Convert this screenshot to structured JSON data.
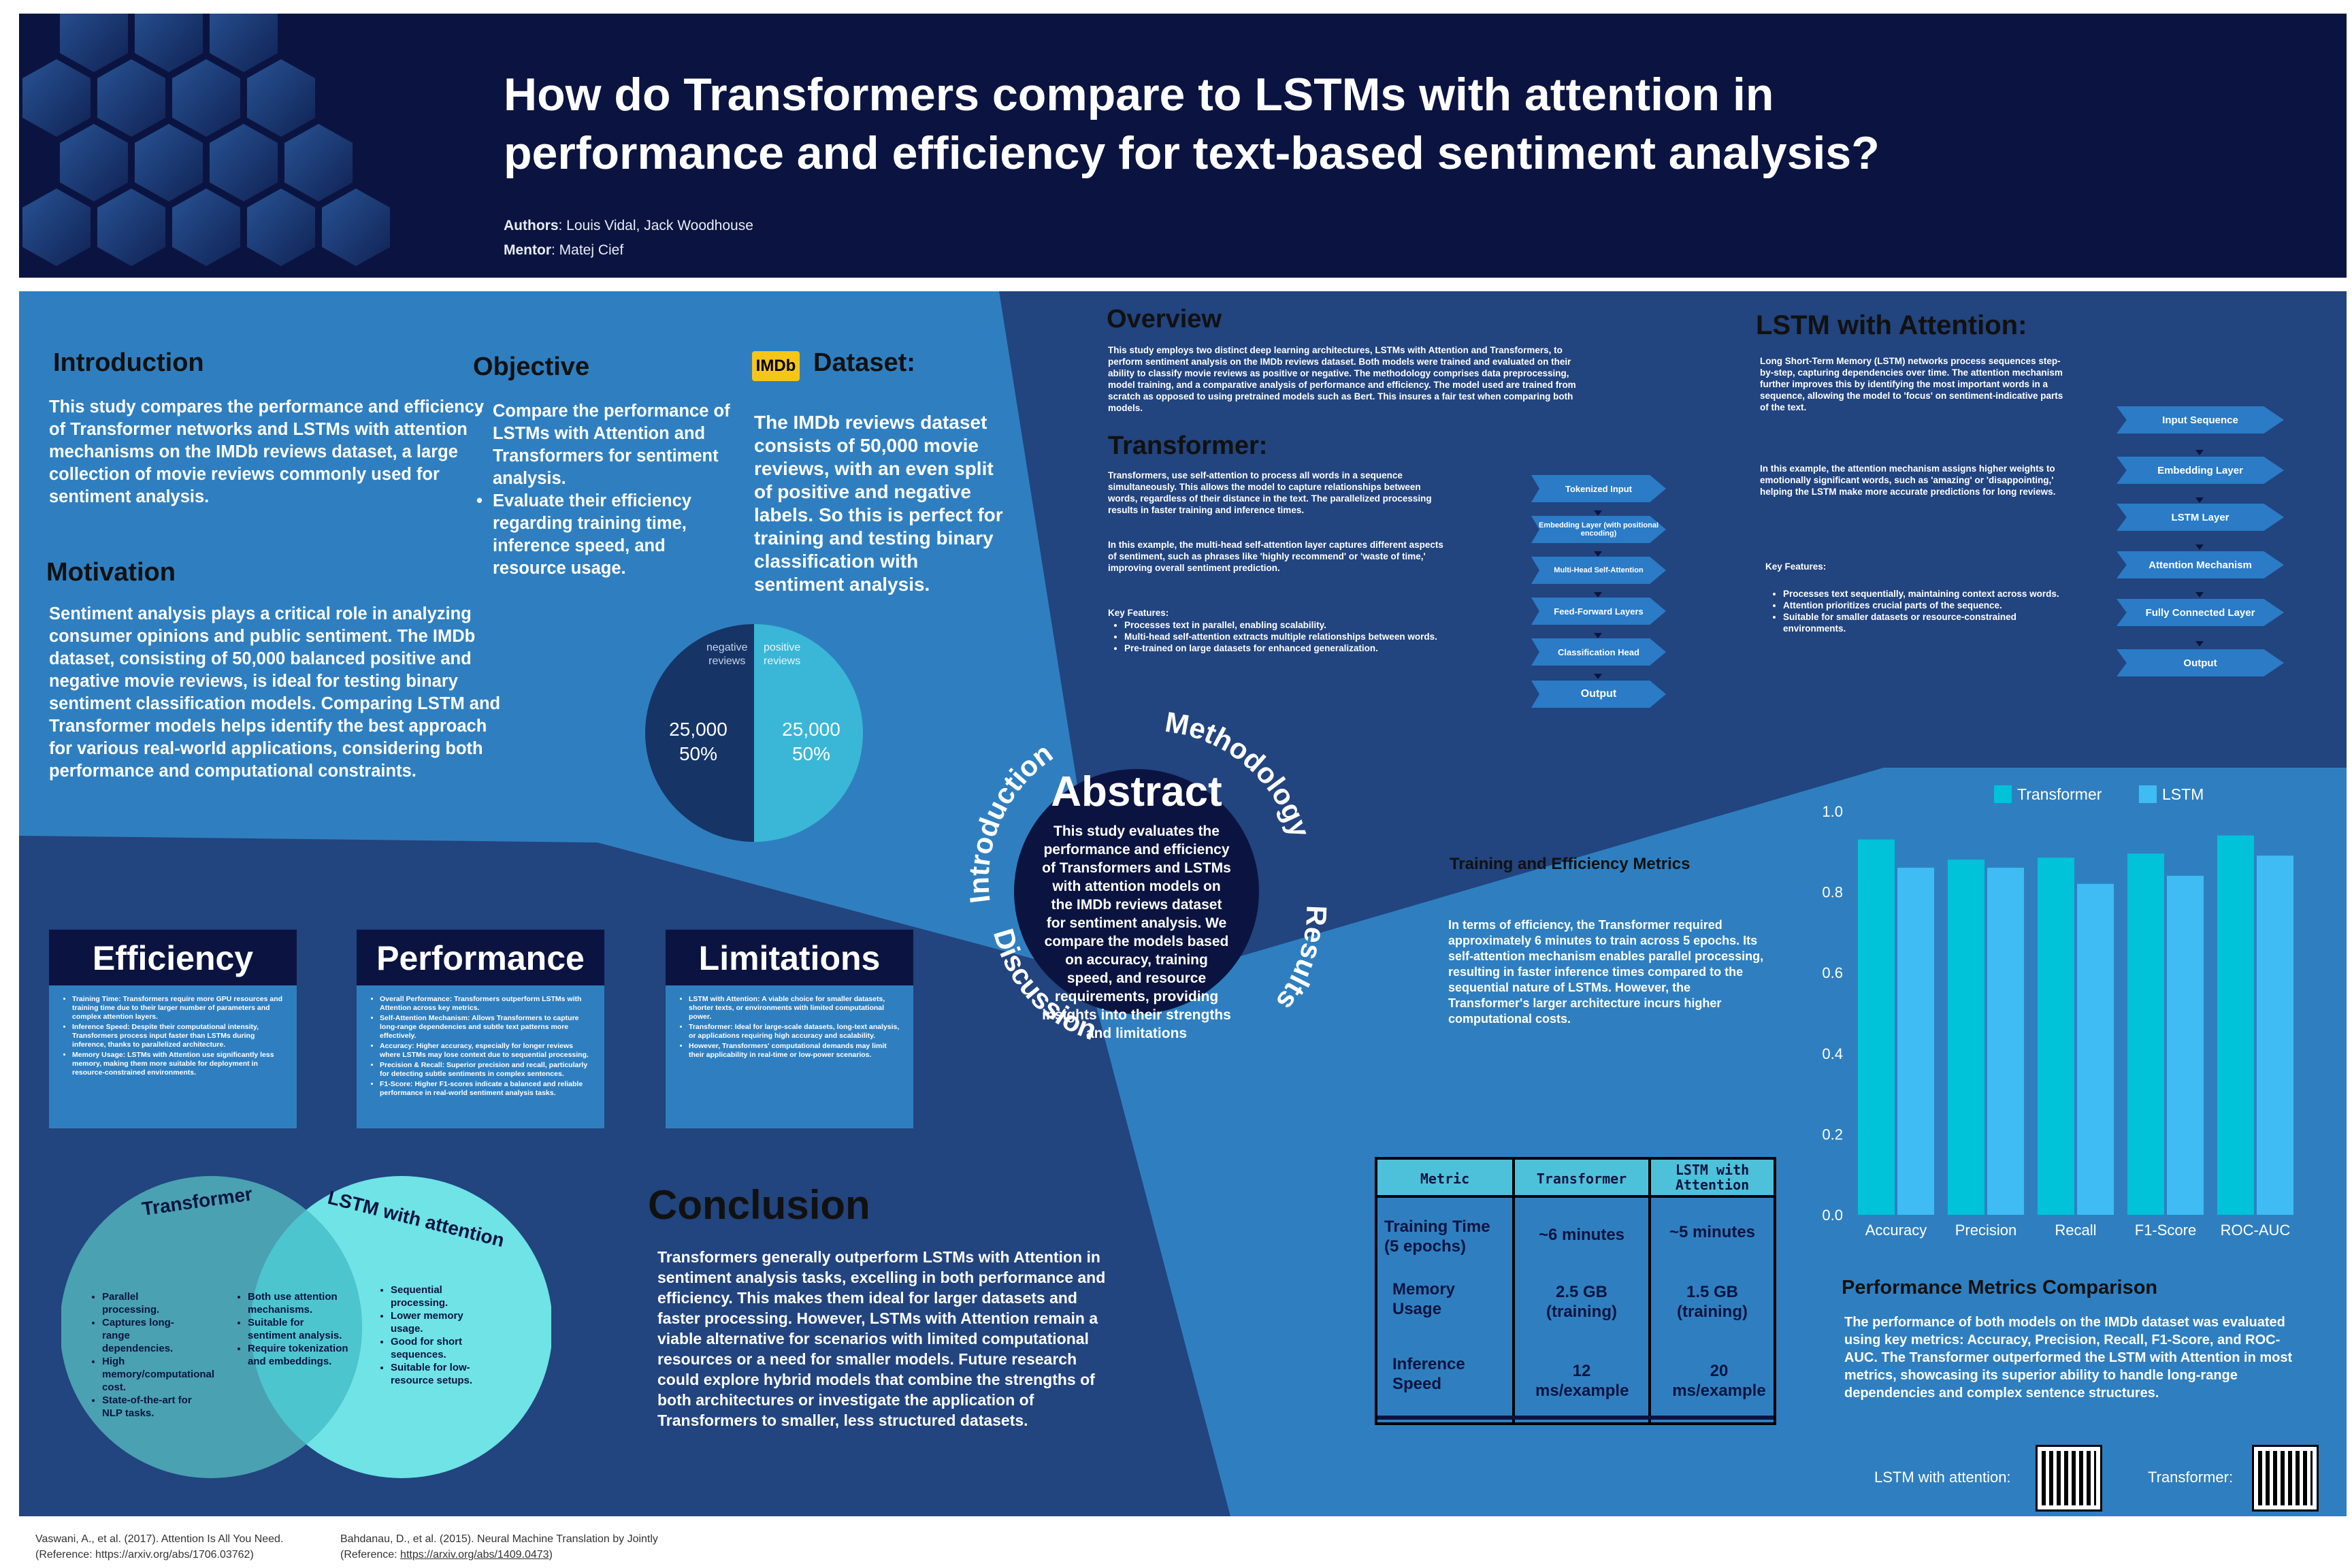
{
  "header": {
    "title_line1": "How do Transformers compare to LSTMs with attention in",
    "title_line2": "performance and efficiency for text-based sentiment analysis?",
    "authors_label": "Authors",
    "authors": ": Louis Vidal, Jack Woodhouse",
    "mentor_label": "Mentor",
    "mentor": ": Matej Cief"
  },
  "introduction": {
    "heading": "Introduction",
    "body": "This study compares the performance and efficiency of Transformer networks and LSTMs with attention mechanisms on the IMDb reviews dataset, a large collection of movie reviews commonly used for sentiment analysis."
  },
  "motivation": {
    "heading": "Motivation",
    "body": "Sentiment analysis plays a critical role in analyzing consumer opinions and public sentiment. The IMDb dataset, consisting of 50,000 balanced positive and negative movie reviews, is ideal for testing binary sentiment classification models. Comparing LSTM and Transformer models helps identify the best approach for various real-world applications, considering both performance and computational constraints."
  },
  "objective": {
    "heading": "Objective",
    "items": [
      "Compare the performance of LSTMs with Attention and Transformers for sentiment analysis.",
      "Evaluate their efficiency regarding training time, inference speed, and resource usage."
    ]
  },
  "dataset": {
    "logo": "IMDb",
    "heading": "Dataset:",
    "body": "The IMDb reviews dataset consists of 50,000 movie reviews, with an even split of positive and negative labels. So this is perfect for training and testing binary classification with sentiment analysis."
  },
  "pie": {
    "neg_label_1": "negative",
    "neg_label_2": "reviews",
    "pos_label_1": "positive",
    "pos_label_2": "reviews",
    "neg_value": "25,000",
    "neg_pct": "50%",
    "pos_value": "25,000",
    "pos_pct": "50%"
  },
  "overview": {
    "heading": "Overview",
    "body": "This study employs two distinct deep learning architectures, LSTMs with Attention and Transformers, to perform sentiment analysis on the IMDb reviews dataset. Both models were trained and evaluated on their ability to classify movie reviews as positive or negative. The methodology comprises data preprocessing, model training, and a comparative analysis of performance and efficiency. The model used are trained from scratch as opposed to using pretrained models such as Bert. This insures a fair test when comparing both models."
  },
  "transformer": {
    "heading": "Transformer:",
    "body1": "Transformers, use self-attention to process all words in a sequence simultaneously. This allows the model to capture relationships between words, regardless of their distance in the text. The parallelized processing results in faster training and inference times.",
    "body2": "In this example, the multi-head self-attention layer captures different aspects of sentiment, such as phrases like 'highly recommend' or 'waste of time,' improving overall sentiment prediction.",
    "key_heading": "Key Features:",
    "features": [
      "Processes text in parallel, enabling scalability.",
      "Multi-head self-attention extracts multiple relationships between words.",
      "Pre-trained on large datasets for enhanced generalization."
    ],
    "flow": [
      "Tokenized Input",
      "Embedding Layer (with positional encoding)",
      "Multi-Head Self-Attention",
      "Feed-Forward Layers",
      "Classification Head",
      "Output"
    ]
  },
  "lstm": {
    "heading": "LSTM with Attention:",
    "body1": "Long Short-Term Memory (LSTM) networks process sequences step-by-step, capturing dependencies over time. The attention mechanism further improves this by identifying the most important words in a sequence, allowing the model to 'focus' on sentiment-indicative parts of the text.",
    "body2": "In this example, the attention mechanism assigns higher weights to emotionally significant words, such as 'amazing' or 'disappointing,' helping the LSTM make more accurate predictions for long reviews.",
    "key_heading": "Key Features:",
    "features": [
      "Processes text sequentially, maintaining context across words.",
      "Attention prioritizes crucial parts of the sequence.",
      "Suitable for smaller datasets or resource-constrained environments."
    ],
    "flow": [
      "Input Sequence",
      "Embedding Layer",
      "LSTM Layer",
      "Attention Mechanism",
      "Fully Connected Layer",
      "Output"
    ]
  },
  "abstract": {
    "heading": "Abstract",
    "body": "This study evaluates the performance and efficiency of Transformers and LSTMs with attention models on the IMDb reviews dataset for sentiment analysis. We compare the models based on accuracy, training speed, and resource requirements, providing insights into their strengths and limitations",
    "ring_introduction": "Introduction",
    "ring_methodology": "Methodology",
    "ring_results": "Results",
    "ring_discussion": "Discussion"
  },
  "efficiency": {
    "heading": "Efficiency",
    "items": [
      "Training Time: Transformers require more GPU resources and training time due to their larger number of parameters and complex attention layers.",
      "Inference Speed: Despite their computational intensity, Transformers process input faster than LSTMs during inference, thanks to parallelized architecture.",
      "Memory Usage: LSTMs with Attention use significantly less memory, making them more suitable for deployment in resource-constrained environments."
    ]
  },
  "performance": {
    "heading": "Performance",
    "items": [
      "Overall Performance: Transformers outperform LSTMs with Attention across key metrics.",
      "Self-Attention Mechanism: Allows Transformers to capture long-range dependencies and subtle text patterns more effectively.",
      "Accuracy: Higher accuracy, especially for longer reviews where LSTMs may lose context due to sequential processing.",
      "Precision & Recall: Superior precision and recall, particularly for detecting subtle sentiments in complex sentences.",
      "F1-Score: Higher F1-scores indicate a balanced and reliable performance in real-world sentiment analysis tasks."
    ]
  },
  "limitations": {
    "heading": "Limitations",
    "items": [
      "LSTM with Attention: A viable choice for smaller datasets, shorter texts, or environments with limited computational power.",
      "Transformer: Ideal for large-scale datasets, long-text analysis, or applications requiring high accuracy and scalability.",
      "However, Transformers' computational demands may limit their applicability in real-time or low-power scenarios."
    ]
  },
  "venn": {
    "left_title": "Transformer",
    "right_title": "LSTM with attention",
    "left_items": [
      "Parallel processing.",
      "Captures long-range dependencies.",
      "High memory/computational cost.",
      "State-of-the-art for NLP tasks."
    ],
    "middle_items": [
      "Both use attention mechanisms.",
      "Suitable for sentiment analysis.",
      "Require tokenization and embeddings."
    ],
    "right_items": [
      "Sequential processing.",
      "Lower memory usage.",
      "Good for short sequences.",
      "Suitable for low-resource setups."
    ]
  },
  "conclusion": {
    "heading": "Conclusion",
    "body": "Transformers generally outperform LSTMs with Attention in sentiment analysis tasks, excelling in both performance and efficiency. This makes them ideal for larger datasets and faster processing. However, LSTMs with Attention remain a viable alternative for scenarios with limited computational resources or a need for smaller models. Future research could explore hybrid models that combine the strengths of both architectures or investigate the application of Transformers to smaller, less structured datasets."
  },
  "training": {
    "heading": "Training and Efficiency Metrics",
    "body": "In terms of efficiency, the Transformer required approximately 6 minutes to train across 5 epochs. Its self-attention mechanism enables parallel processing, resulting in faster inference times compared to the sequential nature of LSTMs. However, the Transformer's larger architecture incurs higher computational costs."
  },
  "table": {
    "headers": [
      "Metric",
      "Transformer",
      "LSTM with Attention"
    ],
    "rows": [
      [
        "Training Time (5 epochs)",
        "~6 minutes",
        "~5 minutes"
      ],
      [
        "Memory Usage",
        "2.5 GB (training)",
        "1.5 GB (training)"
      ],
      [
        "Inference Speed",
        "12 ms/example",
        "20 ms/example"
      ]
    ]
  },
  "chart_data": {
    "type": "bar",
    "categories": [
      "Accuracy",
      "Precision",
      "Recall",
      "F1-Score",
      "ROC-AUC"
    ],
    "series": [
      {
        "name": "Transformer",
        "values": [
          0.93,
          0.88,
          0.885,
          0.895,
          0.94
        ],
        "color": "#00c2d9"
      },
      {
        "name": "LSTM",
        "values": [
          0.86,
          0.86,
          0.82,
          0.84,
          0.89
        ],
        "color": "#3fbcf4"
      }
    ],
    "ylim": [
      0,
      1.0
    ],
    "yticks": [
      "0.0",
      "0.2",
      "0.4",
      "0.6",
      "0.8",
      "1.0"
    ],
    "legend": "top",
    "grid": false
  },
  "perf_metrics": {
    "heading": "Performance Metrics Comparison",
    "body": "The performance of both models on the IMDb dataset was evaluated using key metrics: Accuracy, Precision, Recall, F1-Score, and ROC-AUC. The Transformer outperformed the LSTM with Attention in most metrics, showcasing its superior ability to handle long-range dependencies and complex sentence structures."
  },
  "qr": {
    "lstm_label": "LSTM with attention:",
    "transformer_label": "Transformer:"
  },
  "references": [
    {
      "line1": "Vaswani, A., et al. (2017). Attention Is All You Need.",
      "line2": "(Reference: https://arxiv.org/abs/1706.03762)"
    },
    {
      "line1": "Bahdanau, D., et al. (2015). Neural Machine Translation by Jointly",
      "line2_prefix": "(Reference: ",
      "line2_link": "https://arxiv.org/abs/1409.0473",
      "line2_suffix": ")"
    }
  ],
  "colors": {
    "navy": "#0b1440",
    "mid_blue": "#22447f",
    "light_blue": "#2f7fc0",
    "teal": "#4ec1da",
    "cyan": "#6fe3e6"
  }
}
